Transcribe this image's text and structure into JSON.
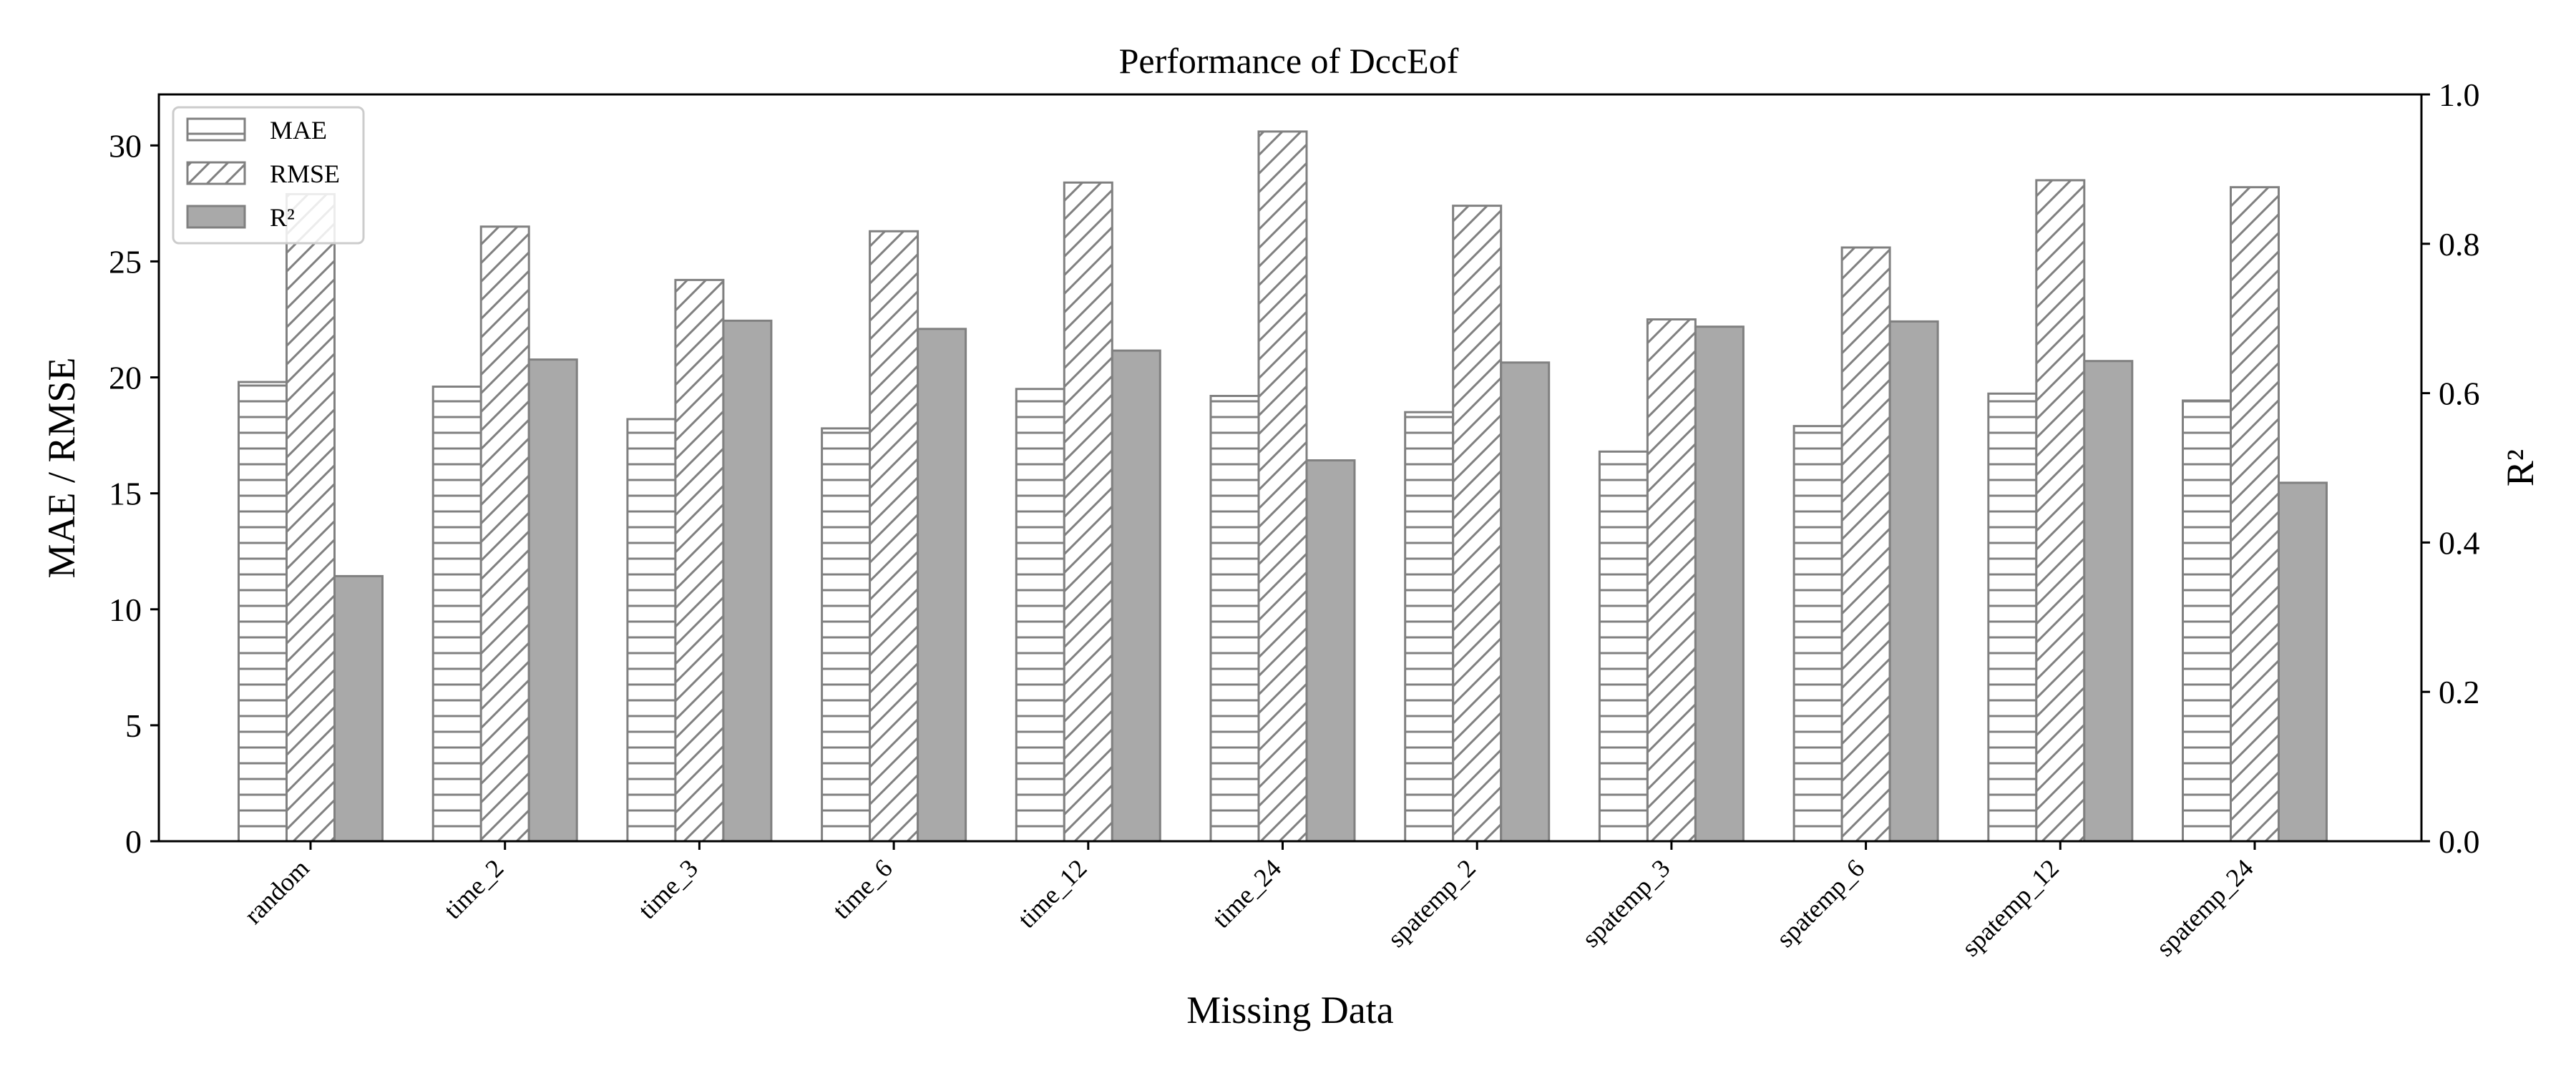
{
  "chart_data": {
    "type": "bar",
    "title": "Performance of DccEof",
    "xlabel": "Missing Data",
    "ylabel": "MAE / RMSE",
    "y2label": "R²",
    "categories": [
      "random",
      "time_2",
      "time_3",
      "time_6",
      "time_12",
      "time_24",
      "spatemp_2",
      "spatemp_3",
      "spatemp_6",
      "spatemp_12",
      "spatemp_24"
    ],
    "series": [
      {
        "name": "MAE",
        "axis": "left",
        "pattern": "horizontal-hatch",
        "values": [
          19.8,
          19.6,
          18.2,
          17.8,
          19.5,
          19.2,
          18.5,
          16.8,
          17.9,
          19.3,
          19.0
        ]
      },
      {
        "name": "RMSE",
        "axis": "left",
        "pattern": "diagonal-hatch",
        "values": [
          27.9,
          26.5,
          24.2,
          26.3,
          28.4,
          30.6,
          27.4,
          22.5,
          25.6,
          28.5,
          28.2
        ]
      },
      {
        "name": "R²",
        "axis": "right",
        "pattern": "solid",
        "values": [
          0.355,
          0.645,
          0.697,
          0.686,
          0.657,
          0.51,
          0.641,
          0.689,
          0.696,
          0.643,
          0.48
        ]
      }
    ],
    "ylim": [
      0,
      32.2
    ],
    "y2lim": [
      0,
      1.0
    ],
    "yticks": [
      0,
      5,
      10,
      15,
      20,
      25,
      30
    ],
    "y2ticks": [
      "0.0",
      "0.2",
      "0.4",
      "0.6",
      "0.8",
      "1.0"
    ],
    "legend": "top-left",
    "grid": false,
    "colors": {
      "edge": "#808080",
      "fill_solid": "#a9a9a9",
      "hatch": "#808080",
      "axis": "#000000"
    }
  }
}
